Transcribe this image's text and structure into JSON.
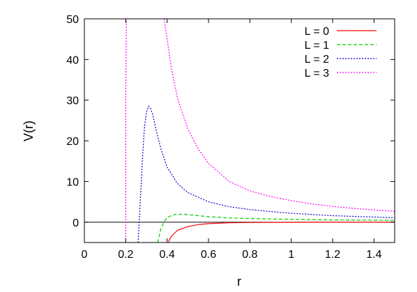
{
  "chart_data": {
    "type": "line",
    "title": "",
    "xlabel": "r",
    "ylabel": "V(r)",
    "xlim": [
      0,
      1.5
    ],
    "ylim": [
      -5,
      50
    ],
    "xticks": [
      0,
      0.2,
      0.4,
      0.6,
      0.8,
      1,
      1.2,
      1.4
    ],
    "xtick_labels": [
      "0",
      "0.2",
      "0.4",
      "0.6",
      "0.8",
      "1",
      "1.2",
      "1.4"
    ],
    "yticks": [
      0,
      10,
      20,
      30,
      40,
      50
    ],
    "ytick_labels": [
      "0",
      "10",
      "20",
      "30",
      "40",
      "50"
    ],
    "grid": false,
    "zero_line": true,
    "legend_position": "top-right",
    "series": [
      {
        "name": "L = 0",
        "color": "#ff0000",
        "dash": "solid",
        "x": [
          0.405,
          0.42,
          0.45,
          0.5,
          0.55,
          0.6,
          0.7,
          0.8,
          1.0,
          1.2,
          1.5
        ],
        "y": [
          -5,
          -3.5,
          -2,
          -1.1,
          -0.6,
          -0.35,
          -0.15,
          -0.08,
          -0.03,
          -0.01,
          0
        ]
      },
      {
        "name": "L = 1",
        "color": "#00cc00",
        "dash": "dashed",
        "x": [
          0.355,
          0.37,
          0.39,
          0.41,
          0.44,
          0.47,
          0.5,
          0.55,
          0.6,
          0.7,
          0.8,
          1.0,
          1.2,
          1.5
        ],
        "y": [
          -5,
          -1.5,
          0.5,
          1.4,
          1.9,
          1.95,
          1.85,
          1.6,
          1.35,
          1.05,
          0.9,
          0.7,
          0.55,
          0.45
        ]
      },
      {
        "name": "L = 2",
        "color": "#0000cc",
        "dash": "dotted",
        "x": [
          0.26,
          0.27,
          0.28,
          0.29,
          0.3,
          0.31,
          0.32,
          0.33,
          0.35,
          0.37,
          0.4,
          0.45,
          0.5,
          0.6,
          0.7,
          0.8,
          0.9,
          1.0,
          1.2,
          1.5
        ],
        "y": [
          -5,
          5,
          15,
          23,
          27,
          28.5,
          28,
          26.5,
          22,
          18,
          13.5,
          9.5,
          7.3,
          5.0,
          3.8,
          3.1,
          2.6,
          2.2,
          1.6,
          1.1
        ]
      },
      {
        "name": "L = 3",
        "color": "#ff00ff",
        "dash": "dotted",
        "x": [
          0.385,
          0.4,
          0.42,
          0.45,
          0.5,
          0.55,
          0.6,
          0.7,
          0.8,
          0.9,
          1.0,
          1.1,
          1.2,
          1.3,
          1.4,
          1.5
        ],
        "y": [
          50,
          45,
          38,
          30.5,
          23,
          18,
          14.5,
          10,
          7.7,
          6.3,
          5.3,
          4.5,
          3.9,
          3.4,
          3.0,
          2.7
        ]
      },
      {
        "name": "L = 3 (inner branch)",
        "legend": false,
        "color": "#ff00ff",
        "dash": "dotted",
        "x": [
          0.2,
          0.2,
          0.203
        ],
        "y": [
          -5,
          30,
          50
        ]
      }
    ]
  }
}
